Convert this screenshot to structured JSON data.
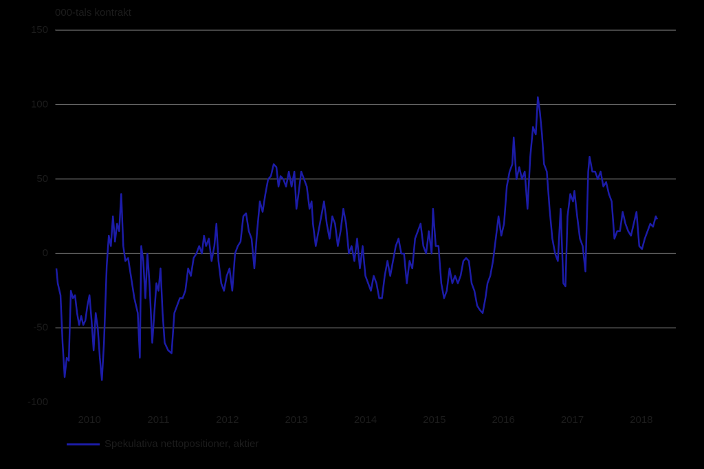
{
  "chart_data": {
    "type": "line",
    "y_unit_label": "000-tals kontrakt",
    "xlim": [
      2010,
      2019
    ],
    "xticks": [
      2010,
      2011,
      2012,
      2013,
      2014,
      2015,
      2016,
      2017,
      2018
    ],
    "ylim": [
      -100,
      150
    ],
    "yticks": [
      -100,
      -50,
      0,
      50,
      100,
      150
    ],
    "grid": true,
    "legend": "bottom-left",
    "x": [
      2010.02,
      2010.04,
      2010.08,
      2010.11,
      2010.14,
      2010.17,
      2010.2,
      2010.23,
      2010.26,
      2010.29,
      2010.32,
      2010.35,
      2010.38,
      2010.41,
      2010.44,
      2010.47,
      2010.5,
      2010.53,
      2010.56,
      2010.59,
      2010.62,
      2010.65,
      2010.68,
      2010.71,
      2010.75,
      2010.78,
      2010.81,
      2010.84,
      2010.87,
      2010.9,
      2010.93,
      2010.96,
      2010.99,
      2011.02,
      2011.06,
      2011.1,
      2011.15,
      2011.2,
      2011.23,
      2011.25,
      2011.28,
      2011.31,
      2011.34,
      2011.37,
      2011.41,
      2011.44,
      2011.47,
      2011.5,
      2011.53,
      2011.56,
      2011.59,
      2011.64,
      2011.69,
      2011.73,
      2011.77,
      2011.81,
      2011.85,
      2011.89,
      2011.93,
      2011.97,
      2012.01,
      2012.05,
      2012.09,
      2012.13,
      2012.16,
      2012.19,
      2012.23,
      2012.27,
      2012.31,
      2012.34,
      2012.37,
      2012.41,
      2012.45,
      2012.49,
      2012.53,
      2012.57,
      2012.61,
      2012.65,
      2012.69,
      2012.73,
      2012.77,
      2012.81,
      2012.85,
      2012.89,
      2012.93,
      2012.97,
      2013.01,
      2013.05,
      2013.09,
      2013.13,
      2013.17,
      2013.21,
      2013.24,
      2013.27,
      2013.31,
      2013.35,
      2013.39,
      2013.43,
      2013.47,
      2013.5,
      2013.53,
      2013.57,
      2013.61,
      2013.65,
      2013.69,
      2013.72,
      2013.74,
      2013.78,
      2013.82,
      2013.86,
      2013.9,
      2013.94,
      2013.98,
      2014.02,
      2014.06,
      2014.1,
      2014.14,
      2014.18,
      2014.22,
      2014.26,
      2014.3,
      2014.34,
      2014.38,
      2014.42,
      2014.46,
      2014.5,
      2014.54,
      2014.58,
      2014.62,
      2014.66,
      2014.7,
      2014.74,
      2014.78,
      2014.82,
      2014.86,
      2014.9,
      2014.94,
      2014.98,
      2015.02,
      2015.06,
      2015.1,
      2015.14,
      2015.18,
      2015.22,
      2015.26,
      2015.3,
      2015.34,
      2015.38,
      2015.42,
      2015.46,
      2015.48,
      2015.52,
      2015.56,
      2015.6,
      2015.64,
      2015.68,
      2015.72,
      2015.76,
      2015.8,
      2015.84,
      2015.88,
      2015.92,
      2015.96,
      2016.0,
      2016.04,
      2016.08,
      2016.12,
      2016.16,
      2016.2,
      2016.24,
      2016.27,
      2016.31,
      2016.35,
      2016.39,
      2016.43,
      2016.47,
      2016.51,
      2016.55,
      2016.59,
      2016.63,
      2016.65,
      2016.69,
      2016.73,
      2016.77,
      2016.81,
      2016.85,
      2016.89,
      2016.93,
      2016.97,
      2017.0,
      2017.03,
      2017.06,
      2017.09,
      2017.13,
      2017.17,
      2017.21,
      2017.25,
      2017.29,
      2017.33,
      2017.37,
      2017.4,
      2017.43,
      2017.47,
      2017.51,
      2017.53,
      2017.57,
      2017.61,
      2017.65,
      2017.69,
      2017.73,
      2017.75,
      2017.79,
      2017.83,
      2017.87,
      2017.91,
      2017.95,
      2017.99,
      2018.03,
      2018.07,
      2018.11,
      2018.15,
      2018.19,
      2018.23,
      2018.27,
      2018.31,
      2018.35,
      2018.39,
      2018.43,
      2018.47,
      2018.51,
      2018.55,
      2018.59,
      2018.63,
      2018.67,
      2018.71,
      2018.73
    ],
    "series": [
      {
        "name": "Spekulativa nettopositioner, aktier",
        "color": "#1c1ca8",
        "values": [
          -10,
          -20,
          -28,
          -60,
          -83,
          -70,
          -72,
          -25,
          -30,
          -28,
          -40,
          -48,
          -42,
          -48,
          -45,
          -35,
          -28,
          -45,
          -65,
          -40,
          -50,
          -70,
          -85,
          -60,
          -8,
          12,
          5,
          25,
          8,
          20,
          15,
          40,
          5,
          -5,
          -3,
          -15,
          -30,
          -40,
          -70,
          5,
          -5,
          -30,
          0,
          -20,
          -60,
          -40,
          -20,
          -25,
          -10,
          -40,
          -60,
          -65,
          -67,
          -40,
          -35,
          -30,
          -30,
          -25,
          -10,
          -15,
          -3,
          0,
          5,
          0,
          12,
          5,
          10,
          -5,
          5,
          20,
          -5,
          -20,
          -25,
          -15,
          -10,
          -25,
          0,
          5,
          8,
          25,
          27,
          15,
          10,
          -10,
          15,
          35,
          28,
          40,
          50,
          52,
          60,
          58,
          45,
          52,
          50,
          45,
          55,
          45,
          55,
          30,
          40,
          55,
          50,
          45,
          30,
          35,
          20,
          5,
          15,
          25,
          35,
          20,
          10,
          25,
          20,
          5,
          15,
          30,
          20,
          0,
          5,
          -5,
          10,
          -10,
          5,
          -15,
          -20,
          -25,
          -15,
          -20,
          -30,
          -30,
          -15,
          -5,
          -15,
          -5,
          5,
          10,
          0,
          0,
          -20,
          -5,
          -10,
          10,
          15,
          20,
          5,
          0,
          15,
          0,
          30,
          5,
          5,
          -20,
          -30,
          -25,
          -10,
          -20,
          -15,
          -20,
          -15,
          -5,
          -3,
          -5,
          -20,
          -25,
          -35,
          -38,
          -40,
          -30,
          -20,
          -15,
          -5,
          10,
          25,
          12,
          20,
          45,
          55,
          60,
          78,
          50,
          58,
          50,
          55,
          30,
          65,
          85,
          80,
          105,
          95,
          80,
          60,
          55,
          30,
          10,
          0,
          -5,
          30,
          -20,
          -22,
          25,
          40,
          35,
          42,
          25,
          10,
          5,
          -12,
          55,
          65,
          55,
          55,
          50,
          55,
          45,
          48,
          40,
          35,
          10,
          15,
          15,
          28,
          20,
          15,
          12,
          20,
          28,
          5,
          3,
          10,
          15,
          20,
          18,
          25,
          23
        ]
      }
    ]
  }
}
